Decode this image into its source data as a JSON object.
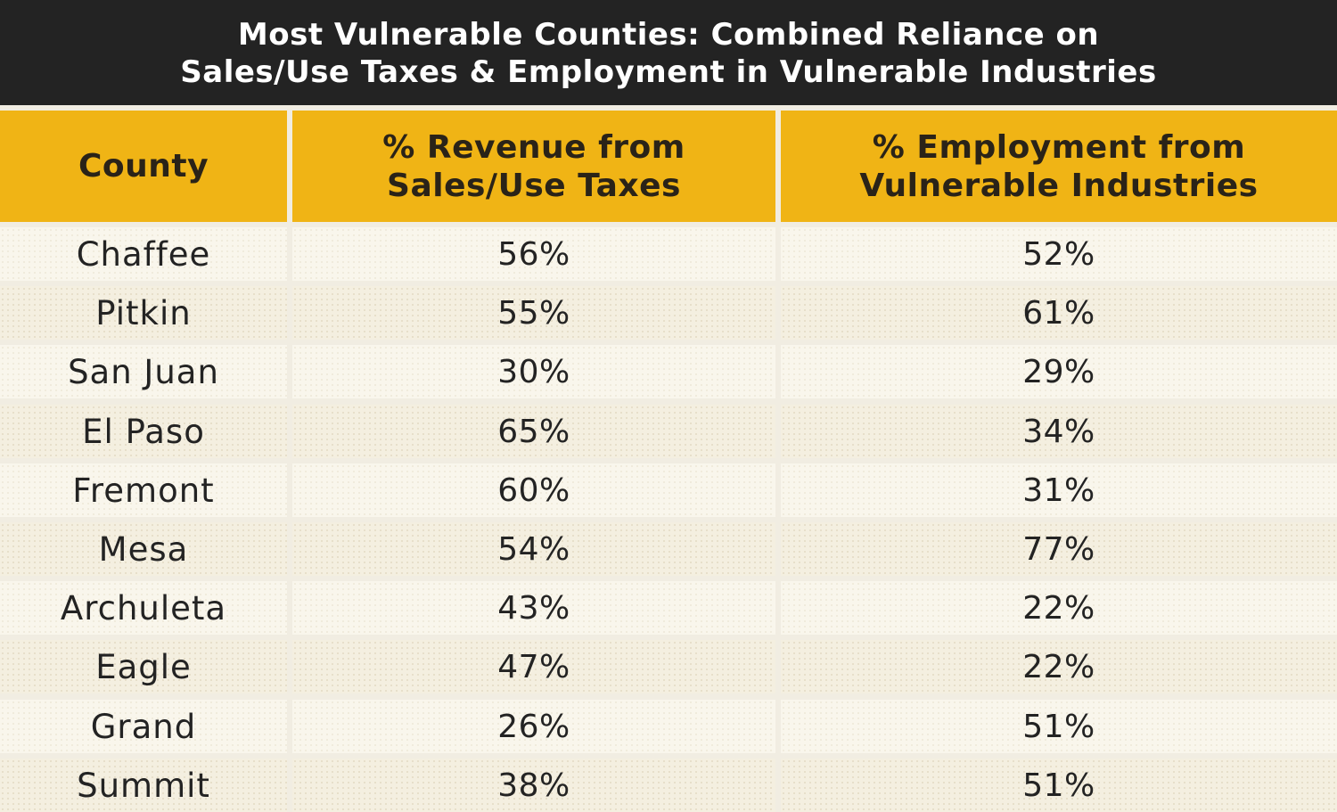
{
  "title": {
    "line1": "Most Vulnerable Counties: Combined Reliance on",
    "line2": "Sales/Use Taxes & Employment in Vulnerable Industries"
  },
  "chart_data": {
    "type": "table",
    "title": "Most Vulnerable Counties: Combined Reliance on Sales/Use Taxes & Employment in Vulnerable Industries",
    "columns": [
      {
        "line1": "County",
        "line2": ""
      },
      {
        "line1": "% Revenue from",
        "line2": "Sales/Use Taxes"
      },
      {
        "line1": "% Employment from",
        "line2": "Vulnerable Industries"
      }
    ],
    "rows": [
      [
        "Chaffee",
        "56%",
        "52%"
      ],
      [
        "Pitkin",
        "55%",
        "61%"
      ],
      [
        "San Juan",
        "30%",
        "29%"
      ],
      [
        "El Paso",
        "65%",
        "34%"
      ],
      [
        "Fremont",
        "60%",
        "31%"
      ],
      [
        "Mesa",
        "54%",
        "77%"
      ],
      [
        "Archuleta",
        "43%",
        "22%"
      ],
      [
        "Eagle",
        "47%",
        "22%"
      ],
      [
        "Grand",
        "26%",
        "51%"
      ],
      [
        "Summit",
        "38%",
        "51%"
      ]
    ]
  },
  "colors": {
    "title_bg": "#232323",
    "header_bg": "#f0b415",
    "text": "#232323",
    "row_bg": "#f4efe0"
  }
}
